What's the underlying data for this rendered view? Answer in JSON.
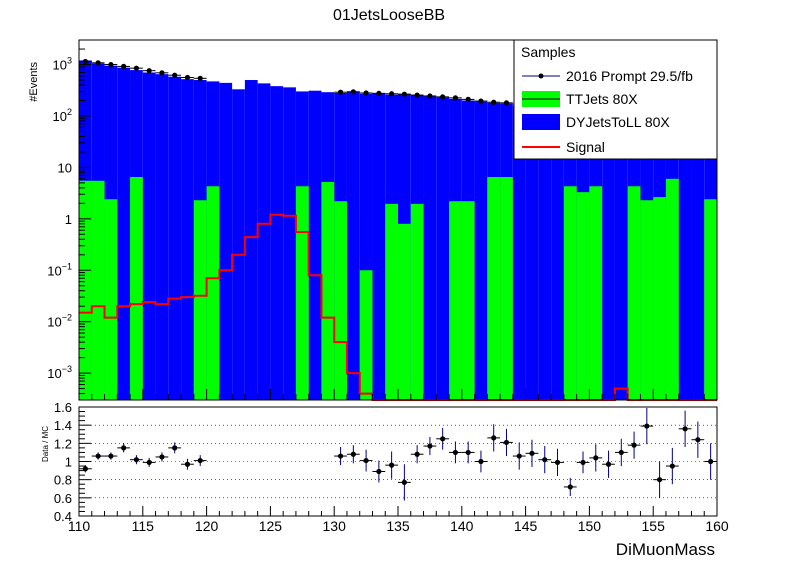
{
  "chart_data": [
    {
      "type": "bar",
      "title": "01JetsLooseBB",
      "ylabel": "#Events",
      "yscale": "log",
      "ylim": [
        0.0003,
        3000
      ],
      "xlim": [
        110,
        160
      ],
      "bin_width": 1,
      "y_ticks": [
        {
          "value": 0.001,
          "base": "10",
          "exp": "−3"
        },
        {
          "value": 0.01,
          "base": "10",
          "exp": "−2"
        },
        {
          "value": 0.1,
          "base": "10",
          "exp": "−1"
        },
        {
          "value": 1,
          "base": "1",
          "exp": ""
        },
        {
          "value": 10,
          "base": "10",
          "exp": ""
        },
        {
          "value": 100,
          "base": "10",
          "exp": "2"
        },
        {
          "value": 1000,
          "base": "10",
          "exp": "3"
        }
      ],
      "legend": {
        "title": "Samples",
        "position": "top-right",
        "entries": [
          "2016 Prompt 29.5/fb",
          "TTJets 80X",
          "DYJetsToLL 80X",
          "Signal"
        ]
      },
      "colors": {
        "dy": "#0000ff",
        "tt": "#00ff00",
        "signal": "#ff0000",
        "data": "#000000"
      },
      "series": [
        {
          "name": "DYJetsToLL 80X",
          "x": [
            110,
            111,
            112,
            113,
            114,
            115,
            116,
            117,
            118,
            119,
            120,
            121,
            122,
            123,
            124,
            125,
            126,
            127,
            128,
            129,
            130,
            131,
            132,
            133,
            134,
            135,
            136,
            137,
            138,
            139,
            140,
            141,
            142,
            143,
            144,
            145,
            146,
            147,
            148,
            149,
            150,
            151,
            152,
            153,
            154,
            155,
            156,
            157,
            158,
            159
          ],
          "values": [
            1200,
            1050,
            950,
            870,
            780,
            700,
            650,
            580,
            520,
            500,
            470,
            440,
            330,
            500,
            430,
            380,
            360,
            300,
            310,
            290,
            280,
            300,
            270,
            280,
            260,
            270,
            250,
            240,
            230,
            215,
            200,
            190,
            180,
            175,
            160,
            155,
            145,
            140,
            135,
            130,
            120,
            120,
            115,
            110,
            110,
            105,
            100,
            100,
            95,
            90
          ]
        },
        {
          "name": "TTJets 80X",
          "x": [
            110,
            111,
            112,
            113,
            114,
            115,
            116,
            117,
            118,
            119,
            120,
            121,
            122,
            123,
            124,
            125,
            126,
            127,
            128,
            129,
            130,
            131,
            132,
            133,
            134,
            135,
            136,
            137,
            138,
            139,
            140,
            141,
            142,
            143,
            144,
            145,
            146,
            147,
            148,
            149,
            150,
            151,
            152,
            153,
            154,
            155,
            156,
            157,
            158,
            159
          ],
          "values": [
            5.5,
            5.5,
            2.4,
            0,
            6.5,
            0,
            0,
            0,
            0,
            2.3,
            4.3,
            0,
            0,
            0,
            0,
            0,
            0,
            4.3,
            0,
            5.2,
            2.2,
            0,
            0.1,
            0,
            1.95,
            0.8,
            1.95,
            0,
            0,
            2.2,
            2.2,
            0,
            6.5,
            6.5,
            0,
            0,
            0,
            0,
            4.3,
            3.3,
            4.3,
            0,
            0,
            4.3,
            2.3,
            2.65,
            6.0,
            0,
            0,
            2.4
          ]
        },
        {
          "name": "Signal",
          "x": [
            110,
            111,
            112,
            113,
            114,
            115,
            116,
            117,
            118,
            119,
            120,
            121,
            122,
            123,
            124,
            125,
            126,
            127,
            128,
            129,
            130,
            131,
            132,
            133,
            134,
            135,
            136,
            137,
            138,
            139,
            140,
            141,
            142,
            143,
            144,
            145,
            146,
            147,
            148,
            149,
            150,
            151,
            152,
            153,
            154,
            155,
            156,
            157,
            158,
            159
          ],
          "values": [
            0.015,
            0.02,
            0.012,
            0.02,
            0.022,
            0.024,
            0.022,
            0.028,
            0.03,
            0.032,
            0.07,
            0.1,
            0.2,
            0.44,
            0.8,
            1.2,
            1.15,
            0.55,
            0.08,
            0.012,
            0.004,
            0.001,
            0.0004,
            0.0003,
            0.0003,
            0.0003,
            0.0003,
            0.0003,
            0.0003,
            0.0003,
            0.0003,
            0.0003,
            0.0003,
            0.0003,
            0.0003,
            0.0003,
            0.0003,
            0.0003,
            0.0003,
            0.0003,
            0.0003,
            0.0003,
            0.0005,
            0.0003,
            0.0003,
            0.0003,
            0.0003,
            0.0003,
            0.0003,
            0.0003
          ]
        },
        {
          "name": "2016 Prompt 29.5/fb",
          "x": [
            110.5,
            111.5,
            112.5,
            113.5,
            114.5,
            115.5,
            116.5,
            117.5,
            118.5,
            119.5,
            130.5,
            131.5,
            132.5,
            133.5,
            134.5,
            135.5,
            136.5,
            137.5,
            138.5,
            139.5,
            140.5,
            141.5,
            142.5,
            143.5,
            144.5,
            145.5,
            146.5,
            147.5,
            148.5,
            149.5,
            150.5,
            151.5,
            152.5,
            153.5,
            154.5,
            155.5,
            156.5,
            157.5,
            158.5,
            159.5
          ],
          "values": [
            1150,
            1080,
            1000,
            920,
            850,
            760,
            690,
            620,
            560,
            540,
            290,
            295,
            280,
            275,
            270,
            265,
            255,
            245,
            235,
            225,
            210,
            195,
            185,
            180,
            170,
            160,
            150,
            145,
            140,
            135,
            128,
            125,
            120,
            118,
            112,
            108,
            104,
            100,
            98,
            95
          ]
        }
      ]
    },
    {
      "type": "scatter",
      "ylabel": "Data / MC",
      "xlabel": "DiMuonMass",
      "xlim": [
        110,
        160
      ],
      "ylim": [
        0.4,
        1.6
      ],
      "x_ticks": [
        110,
        115,
        120,
        125,
        130,
        135,
        140,
        145,
        150,
        155,
        160
      ],
      "y_ticks": [
        0.4,
        0.6,
        0.8,
        1,
        1.2,
        1.4,
        1.6
      ],
      "grid": "horizontal dotted",
      "reference_line": 1,
      "series": [
        {
          "name": "",
          "x": [
            110.5,
            111.5,
            112.5,
            113.5,
            114.5,
            115.5,
            116.5,
            117.5,
            118.5,
            119.5,
            130.5,
            131.5,
            132.5,
            133.5,
            134.5,
            135.5,
            136.5,
            137.5,
            138.5,
            139.5,
            140.5,
            141.5,
            142.5,
            143.5,
            144.5,
            145.5,
            146.5,
            147.5,
            148.5,
            149.5,
            150.5,
            151.5,
            152.5,
            153.5,
            154.5,
            155.5,
            156.5,
            157.5,
            158.5,
            159.5
          ],
          "values": [
            0.92,
            1.06,
            1.06,
            1.15,
            1.02,
            0.99,
            1.05,
            1.15,
            0.97,
            1.01,
            1.06,
            1.08,
            1.01,
            0.89,
            0.96,
            0.77,
            1.08,
            1.17,
            1.25,
            1.1,
            1.1,
            1.0,
            1.26,
            1.21,
            1.06,
            1.09,
            1.02,
            0.99,
            0.72,
            0.99,
            1.04,
            0.97,
            1.1,
            1.18,
            1.39,
            0.8,
            0.95,
            1.36,
            1.24,
            1.0
          ],
          "errors": [
            0.04,
            0.04,
            0.04,
            0.05,
            0.05,
            0.05,
            0.05,
            0.06,
            0.06,
            0.06,
            0.1,
            0.1,
            0.12,
            0.12,
            0.15,
            0.2,
            0.1,
            0.1,
            0.12,
            0.12,
            0.12,
            0.12,
            0.15,
            0.15,
            0.15,
            0.15,
            0.15,
            0.15,
            0.1,
            0.12,
            0.15,
            0.15,
            0.15,
            0.15,
            0.2,
            0.2,
            0.2,
            0.2,
            0.2,
            0.2
          ]
        }
      ]
    }
  ]
}
